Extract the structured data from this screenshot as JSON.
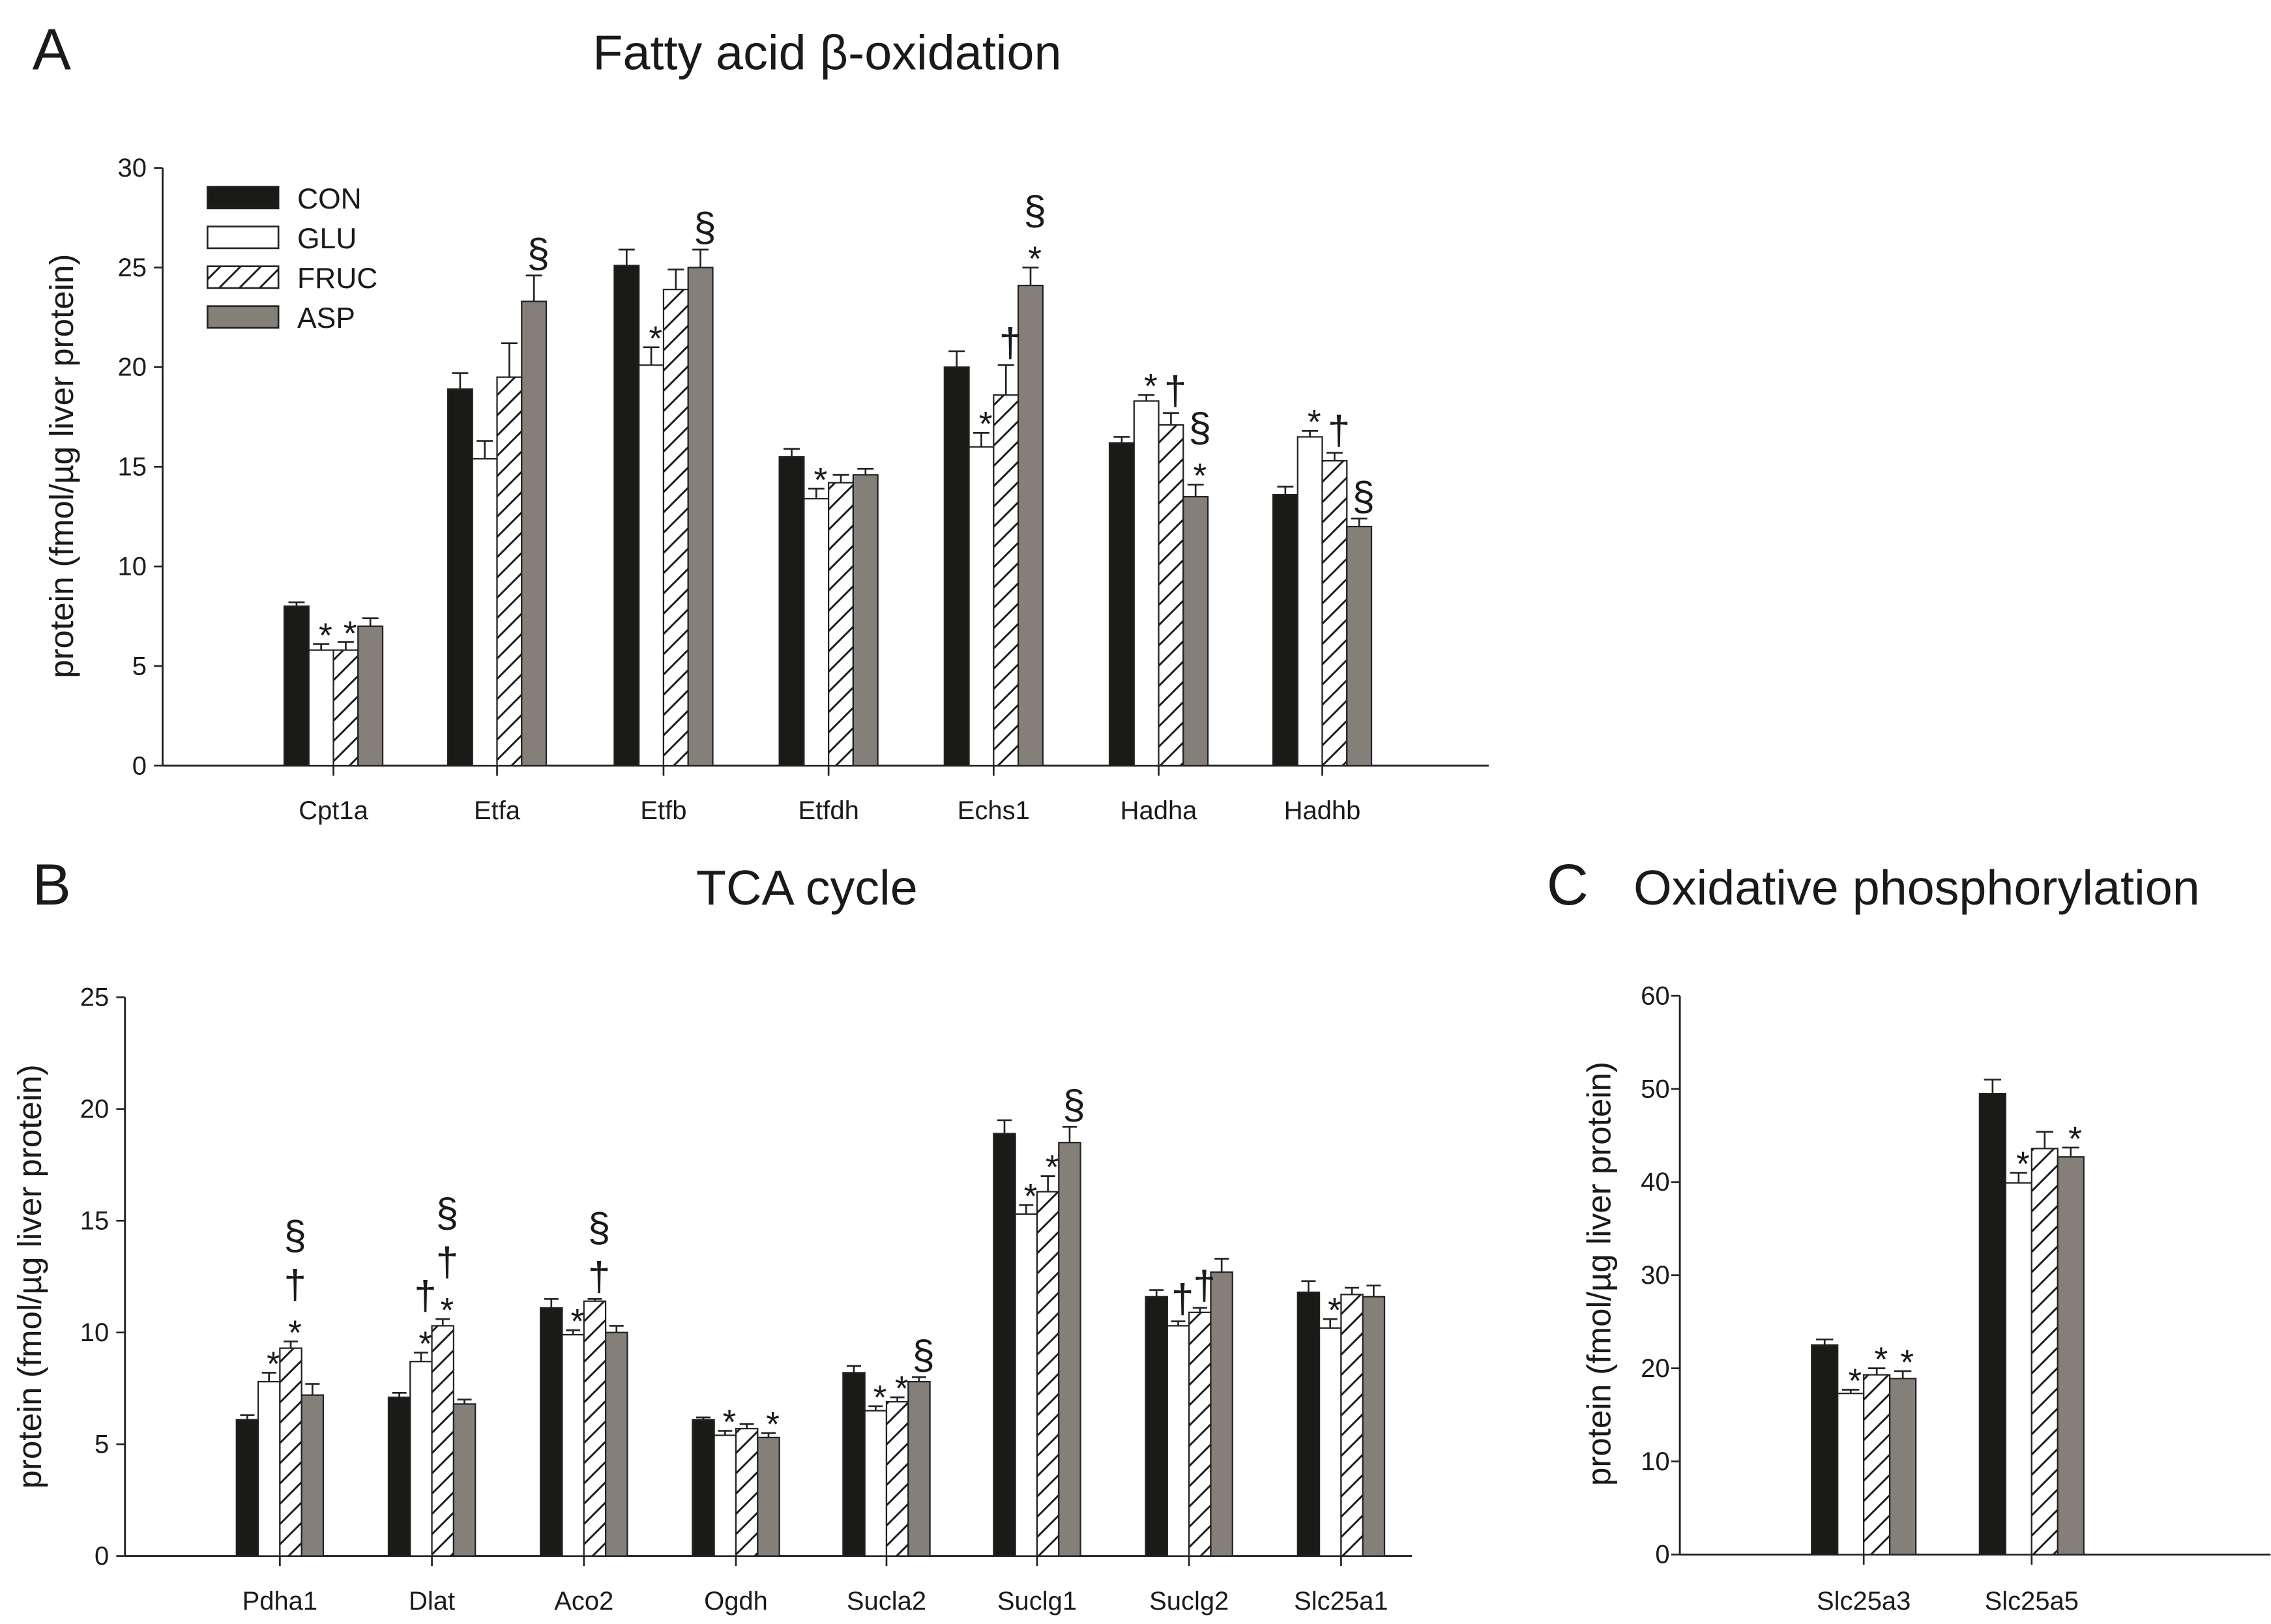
{
  "colors": {
    "CON": "#1a1a17",
    "GLU": "#ffffff",
    "FRUC": "hatched",
    "ASP": "#857f7a"
  },
  "legend": [
    "CON",
    "GLU",
    "FRUC",
    "ASP"
  ],
  "chart_data": [
    {
      "panel": "A",
      "type": "bar",
      "title": "Fatty acid β-oxidation",
      "ylabel": "protein (fmol/µg liver protein)",
      "ylim": [
        0,
        30
      ],
      "yticks": [
        0,
        5,
        10,
        15,
        20,
        25,
        30
      ],
      "legend_position": "top-left",
      "categories": [
        "Cpt1a",
        "Etfa",
        "Etfb",
        "Etfdh",
        "Echs1",
        "Hadha",
        "Hadhb"
      ],
      "series": [
        {
          "name": "CON",
          "values": [
            8.0,
            18.9,
            25.1,
            15.5,
            20.0,
            16.2,
            13.6
          ],
          "errors": [
            0.2,
            0.8,
            0.8,
            0.4,
            0.8,
            0.3,
            0.4
          ]
        },
        {
          "name": "GLU",
          "values": [
            5.8,
            15.4,
            20.1,
            13.4,
            16.0,
            18.3,
            16.5
          ],
          "errors": [
            0.3,
            0.9,
            0.9,
            0.5,
            0.7,
            0.3,
            0.3
          ]
        },
        {
          "name": "FRUC",
          "values": [
            5.8,
            19.5,
            23.9,
            14.2,
            18.6,
            17.1,
            15.3
          ],
          "errors": [
            0.4,
            1.7,
            1.0,
            0.4,
            1.5,
            0.6,
            0.4
          ]
        },
        {
          "name": "ASP",
          "values": [
            7.0,
            23.3,
            25.0,
            14.6,
            24.1,
            13.5,
            12.0
          ],
          "errors": [
            0.4,
            1.3,
            0.9,
            0.3,
            0.9,
            0.6,
            0.4
          ]
        }
      ],
      "annotations": [
        {
          "category": "Cpt1a",
          "series": "GLU",
          "symbols": [
            "*"
          ]
        },
        {
          "category": "Cpt1a",
          "series": "FRUC",
          "symbols": [
            "*"
          ]
        },
        {
          "category": "Etfa",
          "series": "ASP",
          "symbols": [
            "§"
          ]
        },
        {
          "category": "Etfb",
          "series": "GLU",
          "symbols": [
            "*"
          ]
        },
        {
          "category": "Etfb",
          "series": "ASP",
          "symbols": [
            "§"
          ]
        },
        {
          "category": "Etfdh",
          "series": "GLU",
          "symbols": [
            "*"
          ]
        },
        {
          "category": "Echs1",
          "series": "GLU",
          "symbols": [
            "*"
          ]
        },
        {
          "category": "Echs1",
          "series": "FRUC",
          "symbols": [
            "†"
          ]
        },
        {
          "category": "Echs1",
          "series": "ASP",
          "symbols": [
            "*",
            "§"
          ]
        },
        {
          "category": "Hadha",
          "series": "GLU",
          "symbols": [
            "*"
          ]
        },
        {
          "category": "Hadha",
          "series": "FRUC",
          "symbols": [
            "†"
          ]
        },
        {
          "category": "Hadha",
          "series": "ASP",
          "symbols": [
            "*",
            "§"
          ]
        },
        {
          "category": "Hadhb",
          "series": "GLU",
          "symbols": [
            "*"
          ]
        },
        {
          "category": "Hadhb",
          "series": "FRUC",
          "symbols": [
            "†"
          ]
        },
        {
          "category": "Hadhb",
          "series": "ASP",
          "symbols": [
            "§"
          ]
        }
      ]
    },
    {
      "panel": "B",
      "type": "bar",
      "title": "TCA cycle",
      "ylabel": "protein (fmol/µg liver protein)",
      "ylim": [
        0,
        25
      ],
      "yticks": [
        0,
        5,
        10,
        15,
        20,
        25
      ],
      "categories": [
        "Pdha1",
        "Dlat",
        "Aco2",
        "Ogdh",
        "Sucla2",
        "Suclg1",
        "Suclg2",
        "Slc25a1"
      ],
      "series": [
        {
          "name": "CON",
          "values": [
            6.1,
            7.1,
            11.1,
            6.1,
            8.2,
            18.9,
            11.6,
            11.8
          ],
          "errors": [
            0.2,
            0.2,
            0.4,
            0.1,
            0.3,
            0.6,
            0.3,
            0.5
          ]
        },
        {
          "name": "GLU",
          "values": [
            7.8,
            8.7,
            9.9,
            5.4,
            6.5,
            15.3,
            10.3,
            10.2
          ],
          "errors": [
            0.4,
            0.4,
            0.2,
            0.2,
            0.2,
            0.4,
            0.2,
            0.4
          ]
        },
        {
          "name": "FRUC",
          "values": [
            9.3,
            10.3,
            11.4,
            5.7,
            6.9,
            16.3,
            10.9,
            11.7
          ],
          "errors": [
            0.3,
            0.3,
            0.1,
            0.2,
            0.2,
            0.7,
            0.2,
            0.3
          ]
        },
        {
          "name": "ASP",
          "values": [
            7.2,
            6.8,
            10.0,
            5.3,
            7.8,
            18.5,
            12.7,
            11.6
          ],
          "errors": [
            0.5,
            0.2,
            0.3,
            0.2,
            0.2,
            0.7,
            0.6,
            0.5
          ]
        }
      ],
      "annotations": [
        {
          "category": "Pdha1",
          "series": "GLU",
          "symbols": [
            "*"
          ]
        },
        {
          "category": "Pdha1",
          "series": "FRUC",
          "symbols": [
            "*",
            "†",
            "§"
          ]
        },
        {
          "category": "Dlat",
          "series": "GLU",
          "symbols": [
            "*",
            "†"
          ]
        },
        {
          "category": "Dlat",
          "series": "FRUC",
          "symbols": [
            "*",
            "†",
            "§"
          ]
        },
        {
          "category": "Aco2",
          "series": "GLU",
          "symbols": [
            "*"
          ]
        },
        {
          "category": "Aco2",
          "series": "FRUC",
          "symbols": [
            "†",
            "§"
          ]
        },
        {
          "category": "Ogdh",
          "series": "GLU",
          "symbols": [
            "*"
          ]
        },
        {
          "category": "Ogdh",
          "series": "ASP",
          "symbols": [
            "*"
          ]
        },
        {
          "category": "Sucla2",
          "series": "GLU",
          "symbols": [
            "*"
          ]
        },
        {
          "category": "Sucla2",
          "series": "FRUC",
          "symbols": [
            "*"
          ]
        },
        {
          "category": "Sucla2",
          "series": "ASP",
          "symbols": [
            "§"
          ]
        },
        {
          "category": "Suclg1",
          "series": "GLU",
          "symbols": [
            "*"
          ]
        },
        {
          "category": "Suclg1",
          "series": "FRUC",
          "symbols": [
            "*"
          ]
        },
        {
          "category": "Suclg1",
          "series": "ASP",
          "symbols": [
            "§"
          ]
        },
        {
          "category": "Suclg2",
          "series": "GLU",
          "symbols": [
            "†"
          ]
        },
        {
          "category": "Suclg2",
          "series": "FRUC",
          "symbols": [
            "†"
          ]
        },
        {
          "category": "Slc25a1",
          "series": "GLU",
          "symbols": [
            "*"
          ]
        }
      ]
    },
    {
      "panel": "C",
      "type": "bar",
      "title": "Oxidative phosphorylation",
      "ylabel": "protein (fmol/µg liver protein)",
      "ylim": [
        0,
        60
      ],
      "yticks": [
        0,
        10,
        20,
        30,
        40,
        50,
        60
      ],
      "categories": [
        "Slc25a3",
        "Slc25a5"
      ],
      "series": [
        {
          "name": "CON",
          "values": [
            22.5,
            49.5
          ],
          "errors": [
            0.6,
            1.5
          ]
        },
        {
          "name": "GLU",
          "values": [
            17.3,
            39.9
          ],
          "errors": [
            0.4,
            1.1
          ]
        },
        {
          "name": "FRUC",
          "values": [
            19.3,
            43.6
          ],
          "errors": [
            0.7,
            1.8
          ]
        },
        {
          "name": "ASP",
          "values": [
            18.9,
            42.7
          ],
          "errors": [
            0.8,
            1.0
          ]
        }
      ],
      "annotations": [
        {
          "category": "Slc25a3",
          "series": "GLU",
          "symbols": [
            "*"
          ]
        },
        {
          "category": "Slc25a3",
          "series": "FRUC",
          "symbols": [
            "*"
          ]
        },
        {
          "category": "Slc25a3",
          "series": "ASP",
          "symbols": [
            "*"
          ]
        },
        {
          "category": "Slc25a5",
          "series": "GLU",
          "symbols": [
            "*"
          ]
        },
        {
          "category": "Slc25a5",
          "series": "ASP",
          "symbols": [
            "*"
          ]
        }
      ]
    }
  ]
}
